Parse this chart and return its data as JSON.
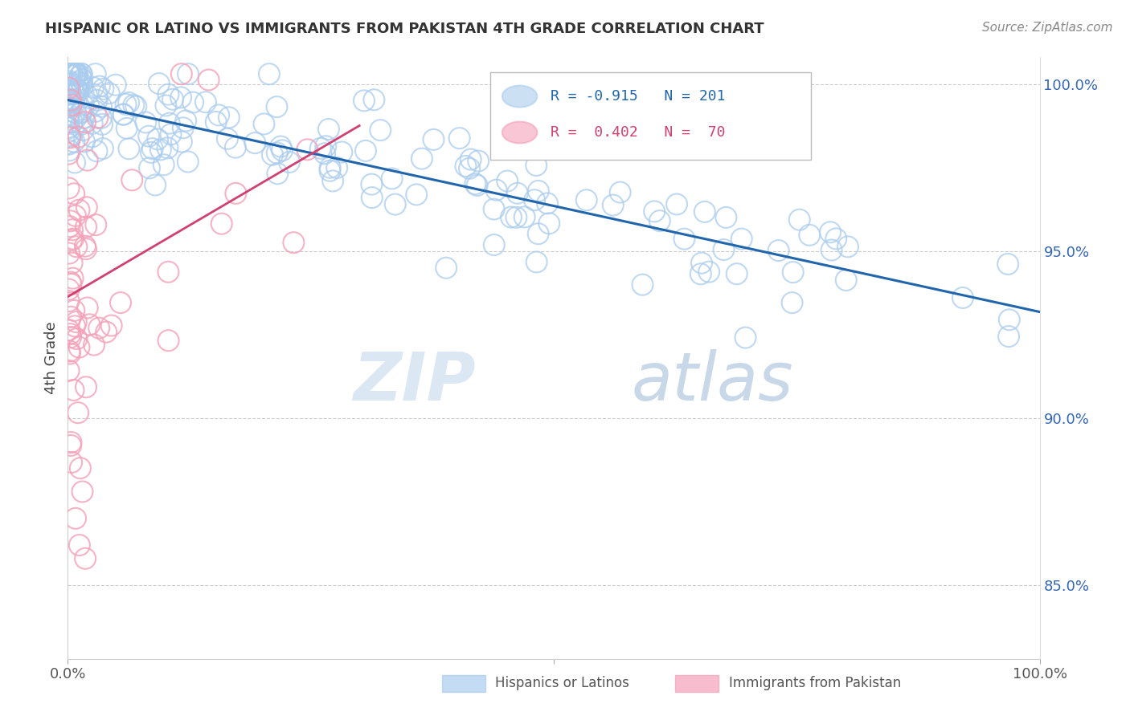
{
  "title": "HISPANIC OR LATINO VS IMMIGRANTS FROM PAKISTAN 4TH GRADE CORRELATION CHART",
  "source": "Source: ZipAtlas.com",
  "ylabel": "4th Grade",
  "xlim": [
    0.0,
    1.0
  ],
  "ylim": [
    0.828,
    1.008
  ],
  "yticks": [
    0.85,
    0.9,
    0.95,
    1.0
  ],
  "ytick_labels": [
    "85.0%",
    "90.0%",
    "95.0%",
    "100.0%"
  ],
  "blue_R": -0.915,
  "blue_N": 201,
  "pink_R": 0.402,
  "pink_N": 70,
  "blue_dot_color": "#aaccee",
  "blue_line_color": "#2166ac",
  "pink_dot_color": "#f4a0b8",
  "pink_line_color": "#d04070",
  "watermark_zip": "ZIP",
  "watermark_atlas": "atlas",
  "legend_label_blue": "Hispanics or Latinos",
  "legend_label_pink": "Immigrants from Pakistan",
  "background_color": "#ffffff",
  "grid_color": "#cccccc",
  "title_color": "#333333",
  "source_color": "#888888",
  "ytick_color": "#3366bb",
  "xtick_color": "#555555"
}
